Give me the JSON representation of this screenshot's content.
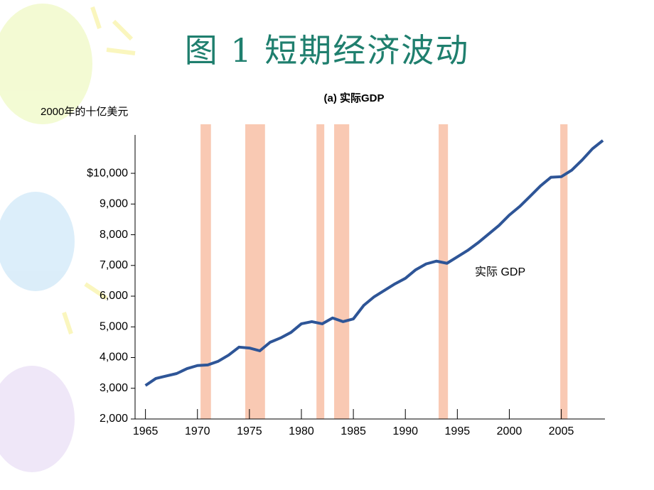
{
  "chart_data": {
    "type": "line",
    "title": "图 1  短期经济波动",
    "subtitle": "(a) 实际GDP",
    "y_label": "2000年的十亿美元",
    "annotation": "实际 GDP",
    "xlim": [
      1964,
      2009.2
    ],
    "ylim": [
      2000,
      11250
    ],
    "xticks": [
      1965,
      1970,
      1975,
      1980,
      1985,
      1990,
      1995,
      2000,
      2005
    ],
    "yticks": [
      {
        "value": 2000,
        "label": "2,000"
      },
      {
        "value": 3000,
        "label": "3,000"
      },
      {
        "value": 4000,
        "label": "4,000"
      },
      {
        "value": 5000,
        "label": "5,000"
      },
      {
        "value": 6000,
        "label": "6,000"
      },
      {
        "value": 7000,
        "label": "7,000"
      },
      {
        "value": 8000,
        "label": "8,000"
      },
      {
        "value": 9000,
        "label": "9,000"
      },
      {
        "value": 10000,
        "label": "$10,000"
      }
    ],
    "bands": [
      [
        1970.3,
        1971.3
      ],
      [
        1974.6,
        1976.5
      ],
      [
        1981.45,
        1982.2
      ],
      [
        1983.15,
        1984.6
      ],
      [
        1993.2,
        1994.1
      ],
      [
        2004.9,
        2005.6
      ]
    ],
    "band_color": "#f9c9b3",
    "x": [
      1965,
      1966,
      1967,
      1968,
      1969,
      1970,
      1971,
      1972,
      1973,
      1974,
      1975,
      1976,
      1977,
      1978,
      1979,
      1980,
      1981,
      1982,
      1983,
      1984,
      1985,
      1986,
      1987,
      1988,
      1989,
      1990,
      1991,
      1992,
      1993,
      1994,
      1995,
      1996,
      1997,
      1998,
      1999,
      2000,
      2001,
      2002,
      2003,
      2004,
      2005,
      2006,
      2007,
      2008,
      2009
    ],
    "series": [
      {
        "name": "实际 GDP",
        "color": "#2e5597",
        "values": [
          3090,
          3320,
          3400,
          3480,
          3640,
          3740,
          3760,
          3880,
          4080,
          4340,
          4310,
          4220,
          4500,
          4640,
          4820,
          5100,
          5170,
          5100,
          5290,
          5170,
          5260,
          5700,
          5980,
          6190,
          6400,
          6580,
          6860,
          7050,
          7140,
          7070,
          7280,
          7490,
          7740,
          8020,
          8300,
          8640,
          8920,
          9250,
          9590,
          9870,
          9890,
          10100,
          10430,
          10800,
          11070
        ]
      }
    ]
  }
}
